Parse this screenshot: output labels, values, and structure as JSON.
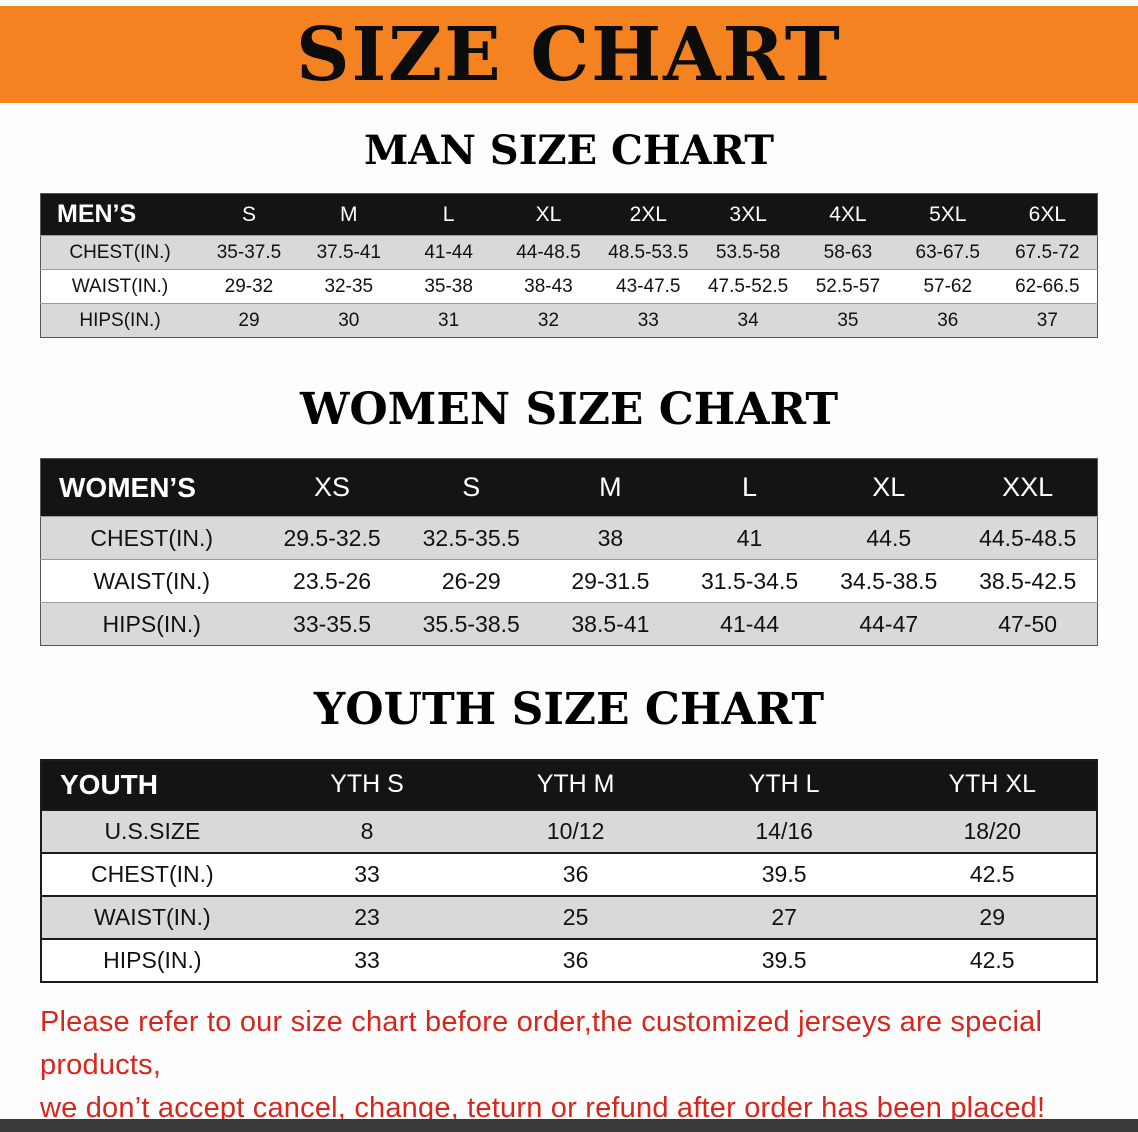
{
  "banner": {
    "title": "SIZE CHART"
  },
  "men": {
    "heading": "MAN SIZE CHART",
    "table": {
      "header": [
        "MEN’S",
        "S",
        "M",
        "L",
        "XL",
        "2XL",
        "3XL",
        "4XL",
        "5XL",
        "6XL"
      ],
      "rows": [
        [
          "CHEST(IN.)",
          "35-37.5",
          "37.5-41",
          "41-44",
          "44-48.5",
          "48.5-53.5",
          "53.5-58",
          "58-63",
          "63-67.5",
          "67.5-72"
        ],
        [
          "WAIST(IN.)",
          "29-32",
          "32-35",
          "35-38",
          "38-43",
          "43-47.5",
          "47.5-52.5",
          "52.5-57",
          "57-62",
          "62-66.5"
        ],
        [
          "HIPS(IN.)",
          "29",
          "30",
          "31",
          "32",
          "33",
          "34",
          "35",
          "36",
          "37"
        ]
      ]
    }
  },
  "women": {
    "heading": "WOMEN SIZE CHART",
    "table": {
      "header": [
        "WOMEN’S",
        "XS",
        "S",
        "M",
        "L",
        "XL",
        "XXL"
      ],
      "rows": [
        [
          "CHEST(IN.)",
          "29.5-32.5",
          "32.5-35.5",
          "38",
          "41",
          "44.5",
          "44.5-48.5"
        ],
        [
          "WAIST(IN.)",
          "23.5-26",
          "26-29",
          "29-31.5",
          "31.5-34.5",
          "34.5-38.5",
          "38.5-42.5"
        ],
        [
          "HIPS(IN.)",
          "33-35.5",
          "35.5-38.5",
          "38.5-41",
          "41-44",
          "44-47",
          "47-50"
        ]
      ]
    }
  },
  "youth": {
    "heading": "YOUTH SIZE CHART",
    "table": {
      "header": [
        "YOUTH",
        "YTH S",
        "YTH M",
        "YTH L",
        "YTH XL"
      ],
      "rows": [
        [
          "U.S.SIZE",
          "8",
          "10/12",
          "14/16",
          "18/20"
        ],
        [
          "CHEST(IN.)",
          "33",
          "36",
          "39.5",
          "42.5"
        ],
        [
          "WAIST(IN.)",
          "23",
          "25",
          "27",
          "29"
        ],
        [
          "HIPS(IN.)",
          "33",
          "36",
          "39.5",
          "42.5"
        ]
      ]
    }
  },
  "note": {
    "line1": "Please refer to our size chart before order,the customized jerseys are special products,",
    "line2": "we don’t accept cancel, change, teturn or refund after order has been placed!"
  },
  "colors": {
    "banner_bg": "#F58220",
    "table_header_bg": "#141414",
    "row_shade": "#D9D9D9",
    "note_red": "#D7271D"
  }
}
